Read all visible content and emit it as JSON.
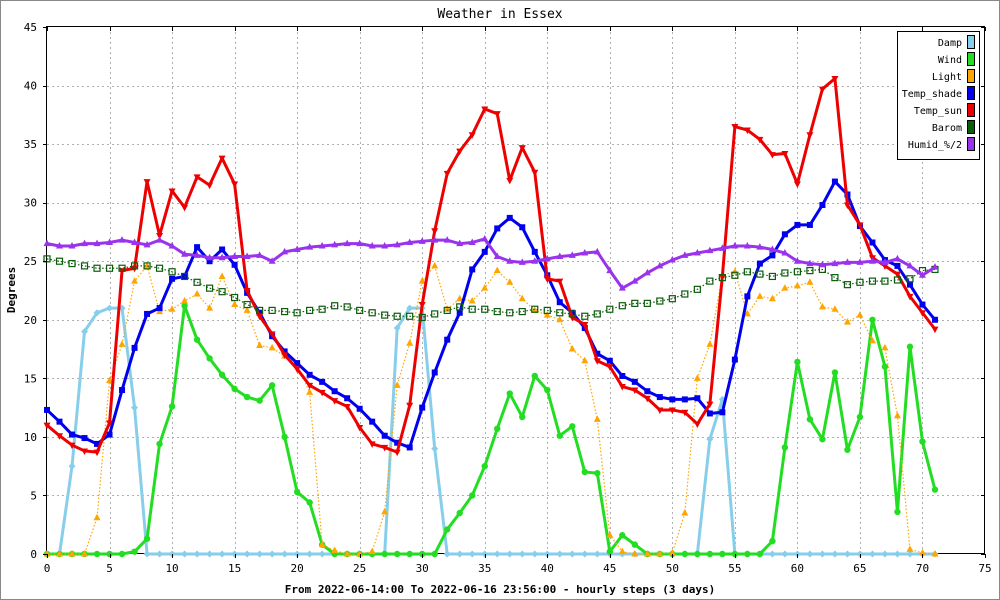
{
  "chart_data": {
    "type": "line",
    "title": "Weather in Essex",
    "xlabel": "From 2022-06-14:00 To 2022-06-16 23:56:00 - hourly steps (3 days)",
    "ylabel": "Degrees",
    "xlim": [
      0,
      75
    ],
    "ylim": [
      0,
      45
    ],
    "x_ticks": [
      0,
      5,
      10,
      15,
      20,
      25,
      30,
      35,
      40,
      45,
      50,
      55,
      60,
      65,
      70,
      75
    ],
    "y_ticks": [
      0,
      5,
      10,
      15,
      20,
      25,
      30,
      35,
      40,
      45
    ],
    "grid": true,
    "legend_position": "top-right",
    "series": [
      {
        "name": "Damp",
        "color": "#87ceeb",
        "line": "solid",
        "marker": "diamond",
        "values": [
          0,
          0,
          7.5,
          19,
          20.6,
          21,
          21,
          12.5,
          0,
          0,
          0,
          0,
          0,
          0,
          0,
          0,
          0,
          0,
          0,
          0,
          0,
          0,
          0,
          0,
          0,
          0,
          0,
          0,
          19.3,
          21,
          21,
          9,
          0,
          0,
          0,
          0,
          0,
          0,
          0,
          0,
          0,
          0,
          0,
          0,
          0,
          0,
          0,
          0,
          0,
          0,
          0,
          0,
          0,
          9.8,
          13.2,
          0,
          0,
          0,
          0,
          0,
          0,
          0,
          0,
          0,
          0,
          0,
          0,
          0,
          0,
          0,
          0,
          0
        ]
      },
      {
        "name": "Wind",
        "color": "#22dd22",
        "line": "solid",
        "marker": "circle",
        "values": [
          0,
          0,
          0,
          0,
          0,
          0,
          0,
          0.2,
          1.3,
          9.4,
          12.6,
          21.2,
          18.3,
          16.7,
          15.3,
          14.1,
          13.4,
          13.1,
          14.4,
          10,
          5.3,
          4.4,
          0.8,
          0,
          0,
          0,
          0,
          0,
          0,
          0,
          0,
          0,
          2.1,
          3.5,
          5,
          7.5,
          10.7,
          13.7,
          11.7,
          15.2,
          14,
          10.1,
          10.9,
          7,
          6.9,
          0.2,
          1.6,
          0.8,
          0,
          0,
          0,
          0,
          0,
          0,
          0,
          0,
          0,
          0,
          1.1,
          9.1,
          16.4,
          11.5,
          9.8,
          15.5,
          8.9,
          11.7,
          20,
          16,
          3.6,
          17.7,
          9.6,
          5.5
        ]
      },
      {
        "name": "Light",
        "color": "#ffa500",
        "line": "dotted",
        "marker": "triangle",
        "values": [
          0,
          0,
          0,
          0,
          3.1,
          14.8,
          17.9,
          23.3,
          24.6,
          20.7,
          20.9,
          21.6,
          22.2,
          21,
          23.7,
          21.3,
          20.8,
          17.8,
          17.6,
          16.9,
          16.2,
          13.8,
          0.8,
          0.3,
          0,
          0,
          0.2,
          3.6,
          14.4,
          18,
          23.3,
          24.6,
          20.9,
          21.8,
          21.6,
          22.7,
          24.2,
          23.2,
          21.8,
          20.8,
          20.4,
          20,
          17.5,
          16.5,
          11.5,
          1.6,
          0.2,
          0,
          0,
          0,
          0.1,
          3.5,
          15,
          17.9,
          23.8,
          24.1,
          20.5,
          22,
          21.8,
          22.7,
          22.9,
          23.2,
          21.1,
          20.9,
          19.8,
          20.4,
          18.2,
          17.6,
          11.8,
          0.4,
          0.1,
          0
        ]
      },
      {
        "name": "Temp_shade",
        "color": "#0000ee",
        "line": "solid",
        "marker": "square",
        "values": [
          12.3,
          11.3,
          10.2,
          9.9,
          9.4,
          10.2,
          14,
          17.6,
          20.5,
          21,
          23.5,
          23.7,
          26.2,
          25,
          26,
          24.7,
          22.3,
          20.6,
          18.6,
          17.3,
          16.3,
          15.3,
          14.7,
          13.9,
          13.3,
          12.4,
          11.3,
          10.1,
          9.5,
          9.1,
          12.5,
          15.5,
          18.3,
          20.6,
          24.3,
          25.8,
          27.8,
          28.7,
          27.9,
          25.8,
          23.8,
          21.5,
          20.6,
          19.3,
          17.1,
          16.5,
          15.2,
          14.7,
          13.9,
          13.4,
          13.2,
          13.2,
          13.3,
          12,
          12.1,
          16.6,
          22,
          24.8,
          25.5,
          27.3,
          28.1,
          28.1,
          29.8,
          31.8,
          30.7,
          28,
          26.6,
          25.1,
          24.6,
          23,
          21.3,
          20
        ]
      },
      {
        "name": "Temp_sun",
        "color": "#ee0000",
        "line": "solid",
        "marker": "triangle-down",
        "values": [
          11,
          10.1,
          9.3,
          8.8,
          8.7,
          11.2,
          24.2,
          24.4,
          31.8,
          27.2,
          31,
          29.6,
          32.2,
          31.5,
          33.8,
          31.6,
          22.5,
          20.3,
          18.8,
          17,
          15.8,
          14.4,
          13.8,
          13.1,
          12.6,
          10.8,
          9.4,
          9.1,
          8.7,
          12.7,
          21.3,
          27.6,
          32.5,
          34.4,
          35.8,
          38,
          37.6,
          31.9,
          34.7,
          32.6,
          23.5,
          23.3,
          20.2,
          19.6,
          16.5,
          16,
          14.3,
          14,
          13.3,
          12.3,
          12.3,
          12.1,
          11.1,
          12.8,
          23.7,
          36.5,
          36.2,
          35.4,
          34.1,
          34.2,
          31.6,
          35.8,
          39.7,
          40.6,
          29.8,
          28.1,
          25.3,
          24.6,
          23.9,
          22,
          20.6,
          19.2
        ]
      },
      {
        "name": "Barom",
        "color": "#0b5d0b",
        "line": "dotted",
        "marker": "square-open",
        "values": [
          25.2,
          25,
          24.8,
          24.6,
          24.4,
          24.4,
          24.4,
          24.6,
          24.6,
          24.4,
          24.1,
          23.7,
          23.2,
          22.7,
          22.4,
          21.9,
          21.3,
          20.8,
          20.8,
          20.7,
          20.6,
          20.8,
          20.9,
          21.2,
          21.1,
          20.8,
          20.6,
          20.4,
          20.3,
          20.3,
          20.2,
          20.5,
          20.8,
          21.1,
          20.9,
          20.9,
          20.7,
          20.6,
          20.7,
          20.9,
          20.8,
          20.6,
          20.5,
          20.3,
          20.5,
          20.9,
          21.2,
          21.4,
          21.4,
          21.6,
          21.8,
          22.2,
          22.6,
          23.3,
          23.6,
          23.8,
          24.1,
          23.9,
          23.7,
          24,
          24.1,
          24.2,
          24.3,
          23.6,
          23,
          23.2,
          23.3,
          23.3,
          23.4,
          23.5,
          24.2,
          24.3
        ]
      },
      {
        "name": "Humid_%/2",
        "color": "#9933ee",
        "line": "solid",
        "marker": "triangle",
        "values": [
          26.5,
          26.3,
          26.3,
          26.5,
          26.5,
          26.6,
          26.8,
          26.6,
          26.4,
          26.8,
          26.3,
          25.6,
          25.5,
          25.3,
          25.3,
          25.4,
          25.4,
          25.5,
          25,
          25.8,
          26,
          26.2,
          26.3,
          26.4,
          26.5,
          26.5,
          26.3,
          26.3,
          26.4,
          26.6,
          26.7,
          26.8,
          26.8,
          26.5,
          26.6,
          26.9,
          25.4,
          25,
          24.9,
          25,
          25.2,
          25.4,
          25.5,
          25.7,
          25.8,
          24.2,
          22.7,
          23.3,
          24,
          24.6,
          25.1,
          25.5,
          25.7,
          25.9,
          26.1,
          26.3,
          26.3,
          26.2,
          26,
          25.7,
          25,
          24.8,
          24.7,
          24.8,
          24.9,
          24.9,
          25,
          24.9,
          25.2,
          24.6,
          23.8,
          24.5
        ]
      }
    ]
  }
}
